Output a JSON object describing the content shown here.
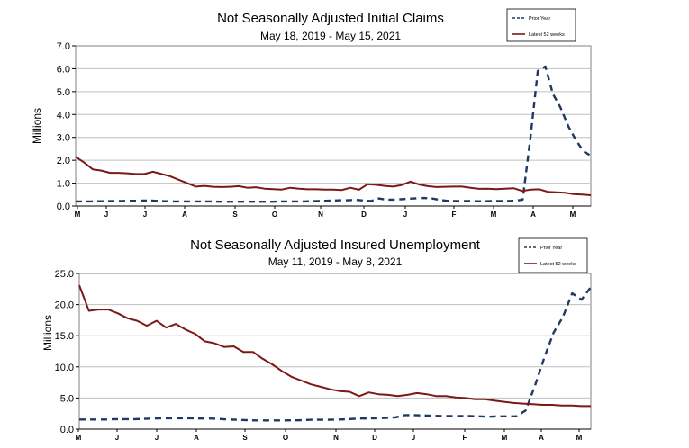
{
  "chart_data": [
    {
      "type": "line",
      "title": "Not Seasonally Adjusted Initial Claims",
      "subtitle": "May 18, 2019  -  May 15, 2021",
      "ylabel": "Millions",
      "ylim": [
        0,
        7
      ],
      "yticks": [
        "0.0",
        "1.0",
        "2.0",
        "3.0",
        "4.0",
        "5.0",
        "6.0",
        "7.0"
      ],
      "xticks": [
        "M",
        "J",
        "J",
        "A",
        "S",
        "O",
        "N",
        "D",
        "J",
        "F",
        "M",
        "A",
        "M"
      ],
      "grid": true,
      "legend_position": "top-right",
      "series": [
        {
          "name": "Prior Year",
          "style": "dashed",
          "color": "#1F3864",
          "values": [
            0.2,
            0.2,
            0.2,
            0.21,
            0.21,
            0.22,
            0.22,
            0.23,
            0.23,
            0.24,
            0.24,
            0.22,
            0.21,
            0.2,
            0.2,
            0.2,
            0.2,
            0.2,
            0.2,
            0.19,
            0.19,
            0.19,
            0.19,
            0.19,
            0.19,
            0.19,
            0.19,
            0.2,
            0.2,
            0.2,
            0.2,
            0.21,
            0.22,
            0.23,
            0.24,
            0.25,
            0.25,
            0.27,
            0.24,
            0.22,
            0.33,
            0.28,
            0.28,
            0.3,
            0.32,
            0.34,
            0.35,
            0.33,
            0.27,
            0.23,
            0.22,
            0.22,
            0.22,
            0.21,
            0.21,
            0.22,
            0.22,
            0.22,
            0.23,
            0.28,
            2.9,
            5.9,
            6.1,
            4.9,
            4.3,
            3.5,
            2.9,
            2.4,
            2.2
          ]
        },
        {
          "name": "Latest 52 weeks",
          "style": "solid",
          "color": "#7B1818",
          "values": [
            2.15,
            1.9,
            1.6,
            1.55,
            1.45,
            1.45,
            1.43,
            1.4,
            1.4,
            1.5,
            1.4,
            1.3,
            1.15,
            1.0,
            0.85,
            0.88,
            0.84,
            0.83,
            0.84,
            0.87,
            0.8,
            0.82,
            0.76,
            0.74,
            0.72,
            0.8,
            0.76,
            0.73,
            0.73,
            0.72,
            0.72,
            0.7,
            0.8,
            0.71,
            0.95,
            0.93,
            0.88,
            0.85,
            0.92,
            1.07,
            0.94,
            0.87,
            0.83,
            0.84,
            0.85,
            0.85,
            0.8,
            0.75,
            0.76,
            0.74,
            0.76,
            0.78,
            0.66,
            0.72,
            0.73,
            0.62,
            0.6,
            0.58,
            0.52,
            0.5,
            0.47
          ]
        }
      ]
    },
    {
      "type": "line",
      "title": "Not Seasonally Adjusted Insured Unemployment",
      "subtitle": "May 11, 2019 - May 8, 2021",
      "ylabel": "Millions",
      "ylim": [
        0,
        25
      ],
      "yticks": [
        "0.0",
        "5.0",
        "10.0",
        "15.0",
        "20.0",
        "25.0"
      ],
      "xticks": [
        "M",
        "J",
        "J",
        "A",
        "S",
        "O",
        "N",
        "D",
        "J",
        "F",
        "M",
        "A",
        "M"
      ],
      "grid": true,
      "legend_position": "top-right",
      "series": [
        {
          "name": "Prior Year",
          "style": "dashed",
          "color": "#1F3864",
          "values": [
            1.55,
            1.55,
            1.55,
            1.55,
            1.6,
            1.6,
            1.6,
            1.65,
            1.7,
            1.75,
            1.75,
            1.75,
            1.75,
            1.7,
            1.7,
            1.65,
            1.55,
            1.5,
            1.45,
            1.4,
            1.4,
            1.4,
            1.4,
            1.42,
            1.45,
            1.5,
            1.5,
            1.5,
            1.55,
            1.6,
            1.7,
            1.7,
            1.75,
            1.8,
            1.9,
            2.25,
            2.25,
            2.2,
            2.15,
            2.1,
            2.1,
            2.1,
            2.1,
            2.05,
            2.0,
            2.05,
            2.05,
            2.05,
            3.0,
            7.0,
            11.5,
            15.5,
            18.0,
            21.8,
            20.8,
            22.8
          ]
        },
        {
          "name": "Latest 52 weeks",
          "style": "solid",
          "color": "#7B1818",
          "values": [
            23.1,
            19.0,
            19.2,
            19.2,
            18.6,
            17.8,
            17.4,
            16.6,
            17.4,
            16.3,
            16.9,
            16.0,
            15.3,
            14.1,
            13.8,
            13.2,
            13.3,
            12.4,
            12.4,
            11.3,
            10.4,
            9.3,
            8.4,
            7.8,
            7.2,
            6.8,
            6.4,
            6.1,
            6.0,
            5.3,
            5.9,
            5.6,
            5.5,
            5.3,
            5.5,
            5.8,
            5.6,
            5.3,
            5.3,
            5.1,
            5.0,
            4.8,
            4.8,
            4.6,
            4.4,
            4.2,
            4.1,
            4.0,
            3.9,
            3.9,
            3.8,
            3.8,
            3.7,
            3.7
          ]
        }
      ]
    }
  ]
}
